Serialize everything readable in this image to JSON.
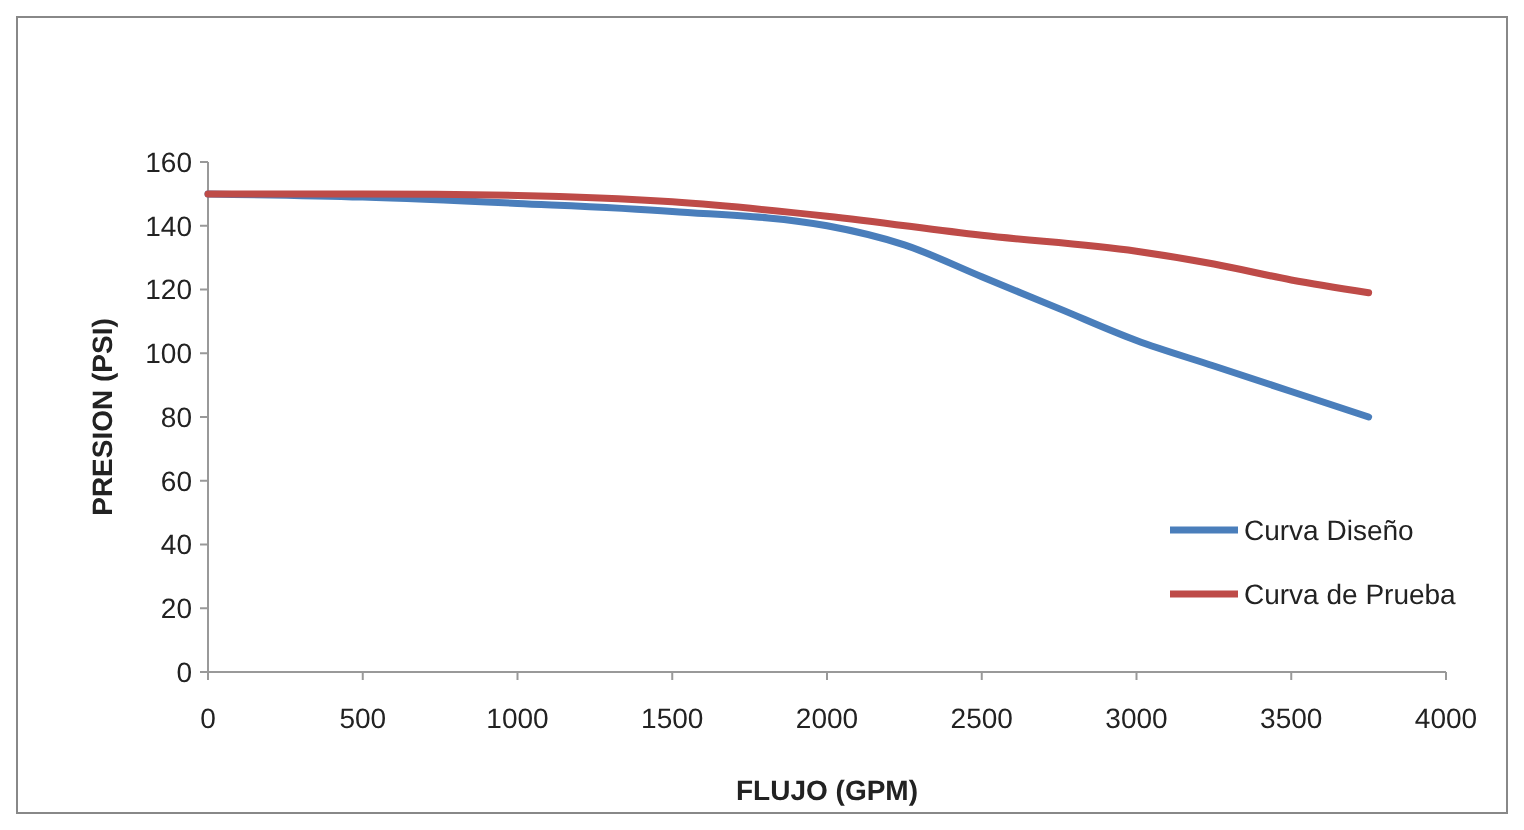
{
  "chart_data": {
    "type": "line",
    "xlabel": "FLUJO (GPM)",
    "ylabel": "PRESION (PSI)",
    "xlim": [
      0,
      4000
    ],
    "xticks": [
      0,
      500,
      1000,
      1500,
      2000,
      2500,
      3000,
      3500,
      4000
    ],
    "ylim": [
      0,
      160
    ],
    "yticks": [
      0,
      20,
      40,
      60,
      80,
      100,
      120,
      140,
      160
    ],
    "grid": false,
    "legend": "bottom right",
    "marker": "none",
    "line_style": "solid",
    "series": [
      {
        "name": "Curva Diseño",
        "color": "#4a7ebb",
        "x": [
          0,
          500,
          1000,
          1500,
          2000,
          2250,
          2500,
          2750,
          3000,
          3250,
          3500,
          3750
        ],
        "values": [
          150,
          149,
          147,
          144.5,
          140,
          134,
          124,
          114,
          104,
          96,
          88,
          80
        ]
      },
      {
        "name": "Curva de Prueba",
        "color": "#be4b48",
        "x": [
          0,
          500,
          1000,
          1500,
          2000,
          2500,
          3000,
          3250,
          3500,
          3750
        ],
        "values": [
          150,
          150,
          149.5,
          147.5,
          143,
          137,
          132,
          128,
          123,
          119
        ]
      }
    ]
  }
}
